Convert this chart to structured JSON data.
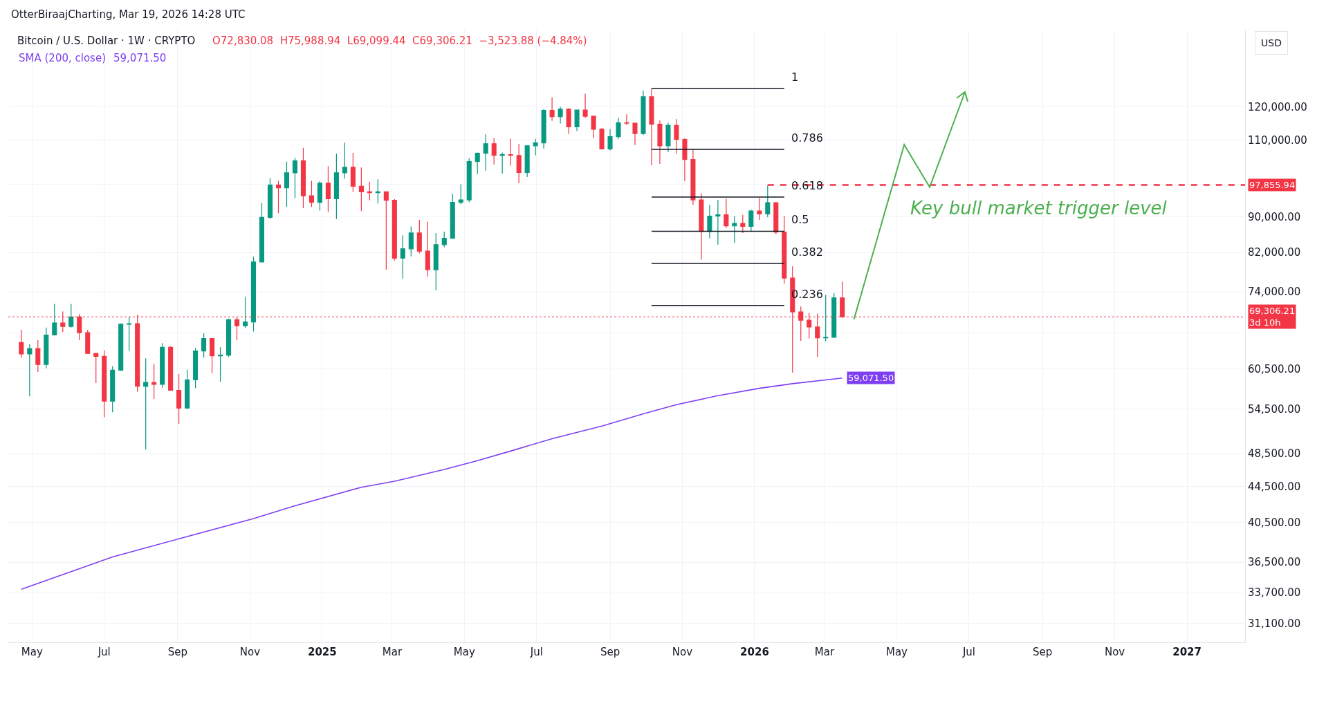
{
  "chart_data": {
    "type": "candlestick",
    "title": "Bitcoin / U.S. Dollar · 1W · CRYPTO",
    "annotations": [
      "OtterBiraajCharting, Mar 19, 2026 14:28 UTC",
      "O72,830.08  H75,988.94  L69,099.44  C69,306.21  −3,523.88 (−4.84%)",
      "USD",
      "Key bull market trigger level"
    ],
    "x": [
      "2024-04-22",
      "2024-04-29",
      "2024-05-06",
      "2024-05-13",
      "2024-05-20",
      "2024-05-27",
      "2024-06-03",
      "2024-06-10",
      "2024-06-17",
      "2024-06-24",
      "2024-07-01",
      "2024-07-08",
      "2024-07-15",
      "2024-07-22",
      "2024-07-29",
      "2024-08-05",
      "2024-08-12",
      "2024-08-19",
      "2024-08-26",
      "2024-09-02",
      "2024-09-09",
      "2024-09-16",
      "2024-09-23",
      "2024-09-30",
      "2024-10-07",
      "2024-10-14",
      "2024-10-21",
      "2024-10-28",
      "2024-11-04",
      "2024-11-11",
      "2024-11-18",
      "2024-11-25",
      "2024-12-02",
      "2024-12-09",
      "2024-12-16",
      "2024-12-23",
      "2024-12-30",
      "2025-01-06",
      "2025-01-13",
      "2025-01-20",
      "2025-01-27",
      "2025-02-03",
      "2025-02-10",
      "2025-02-17",
      "2025-02-24",
      "2025-03-03",
      "2025-03-10",
      "2025-03-17",
      "2025-03-24",
      "2025-03-31",
      "2025-04-07",
      "2025-04-14",
      "2025-04-21",
      "2025-04-28",
      "2025-05-05",
      "2025-05-12",
      "2025-05-19",
      "2025-05-26",
      "2025-06-02",
      "2025-06-09",
      "2025-06-16",
      "2025-06-23",
      "2025-06-30",
      "2025-07-07",
      "2025-07-14",
      "2025-07-21",
      "2025-07-28",
      "2025-08-04",
      "2025-08-11",
      "2025-08-18",
      "2025-08-25",
      "2025-09-01",
      "2025-09-08",
      "2025-09-15",
      "2025-09-22",
      "2025-09-29",
      "2025-10-06",
      "2025-10-13",
      "2025-10-20",
      "2025-10-27",
      "2025-11-03",
      "2025-11-10",
      "2025-11-17",
      "2025-11-24",
      "2025-12-01",
      "2025-12-08",
      "2025-12-15",
      "2025-12-22",
      "2025-12-29",
      "2026-01-05",
      "2026-01-12",
      "2026-01-19",
      "2026-01-26",
      "2026-02-02",
      "2026-02-09",
      "2026-02-16",
      "2026-02-23",
      "2026-03-02",
      "2026-03-09",
      "2026-03-16"
    ],
    "ohlc": [
      [
        64800,
        67000,
        62300,
        62900
      ],
      [
        62900,
        64500,
        56300,
        63800
      ],
      [
        63800,
        65200,
        60000,
        61200
      ],
      [
        61200,
        67400,
        60600,
        66100
      ],
      [
        66100,
        71700,
        66000,
        68200
      ],
      [
        68200,
        70300,
        66600,
        67600
      ],
      [
        67600,
        71700,
        67400,
        69300
      ],
      [
        69300,
        69800,
        65200,
        66500
      ],
      [
        66500,
        67000,
        62900,
        63000
      ],
      [
        63000,
        63000,
        58300,
        62500
      ],
      [
        62500,
        63500,
        53300,
        55600
      ],
      [
        55600,
        60900,
        54000,
        60300
      ],
      [
        60300,
        68100,
        60200,
        68000
      ],
      [
        68000,
        69200,
        63400,
        68100
      ],
      [
        68100,
        69700,
        57000,
        57800
      ],
      [
        57800,
        62200,
        49000,
        58400
      ],
      [
        58400,
        61300,
        55900,
        58100
      ],
      [
        58100,
        64700,
        57600,
        64000
      ],
      [
        64000,
        64200,
        57200,
        57200
      ],
      [
        57200,
        59700,
        52400,
        54600
      ],
      [
        54600,
        60400,
        54500,
        58800
      ],
      [
        58800,
        63900,
        57500,
        63400
      ],
      [
        63400,
        66400,
        62300,
        65500
      ],
      [
        65500,
        65500,
        59800,
        62600
      ],
      [
        62600,
        64000,
        58500,
        62700
      ],
      [
        62700,
        69000,
        62400,
        68800
      ],
      [
        68800,
        69300,
        65200,
        67700
      ],
      [
        67700,
        73000,
        67300,
        68400
      ],
      [
        68400,
        81100,
        66700,
        80000
      ],
      [
        80000,
        93300,
        80000,
        89900
      ],
      [
        89900,
        99600,
        89500,
        97800
      ],
      [
        97800,
        98900,
        90900,
        97100
      ],
      [
        97100,
        104000,
        92400,
        101000
      ],
      [
        101000,
        105100,
        94500,
        104200
      ],
      [
        104200,
        107800,
        92100,
        95100
      ],
      [
        95100,
        98900,
        92400,
        93500
      ],
      [
        93500,
        98800,
        91500,
        98300
      ],
      [
        98300,
        102800,
        91200,
        94400
      ],
      [
        94400,
        106200,
        89500,
        101000
      ],
      [
        101000,
        109300,
        99500,
        102500
      ],
      [
        102500,
        106400,
        96100,
        97500
      ],
      [
        97500,
        102400,
        91400,
        96100
      ],
      [
        96100,
        98700,
        94000,
        95900
      ],
      [
        95900,
        99300,
        93200,
        96100
      ],
      [
        96100,
        96200,
        78400,
        94000
      ],
      [
        94000,
        94300,
        80300,
        80800
      ],
      [
        80800,
        85800,
        76600,
        82800
      ],
      [
        82800,
        87800,
        81200,
        86300
      ],
      [
        86300,
        89300,
        81800,
        82300
      ],
      [
        82300,
        88900,
        77000,
        78400
      ],
      [
        78400,
        86300,
        74300,
        83700
      ],
      [
        83700,
        86600,
        83100,
        85100
      ],
      [
        85100,
        95600,
        85100,
        93500
      ],
      [
        93500,
        98000,
        93000,
        94100
      ],
      [
        94100,
        104900,
        93500,
        104000
      ],
      [
        104000,
        106500,
        100700,
        106300
      ],
      [
        106300,
        111700,
        101600,
        109000
      ],
      [
        109000,
        110600,
        103200,
        105700
      ],
      [
        105700,
        106500,
        100800,
        105900
      ],
      [
        105900,
        110400,
        102900,
        105700
      ],
      [
        105700,
        108900,
        98300,
        101100
      ],
      [
        101100,
        108500,
        99900,
        108400
      ],
      [
        108400,
        110400,
        105700,
        109200
      ],
      [
        109200,
        119300,
        107600,
        118900
      ],
      [
        118900,
        123000,
        115700,
        117000
      ],
      [
        117000,
        120000,
        114900,
        119300
      ],
      [
        119300,
        119600,
        111800,
        113900
      ],
      [
        113900,
        119000,
        112600,
        119000
      ],
      [
        119000,
        124200,
        116600,
        117100
      ],
      [
        117100,
        117300,
        110600,
        113200
      ],
      [
        113200,
        113500,
        107400,
        107500
      ],
      [
        107500,
        113200,
        107100,
        111000
      ],
      [
        111000,
        116600,
        110400,
        115100
      ],
      [
        115100,
        117700,
        114400,
        115000
      ],
      [
        115000,
        115100,
        108600,
        111900
      ],
      [
        111900,
        125200,
        111500,
        123200
      ],
      [
        123200,
        125900,
        103000,
        114700
      ],
      [
        114700,
        115800,
        103400,
        108400
      ],
      [
        108400,
        115100,
        106600,
        114300
      ],
      [
        114300,
        116200,
        106200,
        110200
      ],
      [
        110200,
        110600,
        98800,
        104600
      ],
      [
        104600,
        107400,
        92900,
        94100
      ],
      [
        94100,
        95700,
        80500,
        86600
      ],
      [
        86600,
        92900,
        85100,
        90200
      ],
      [
        90200,
        94100,
        83700,
        90500
      ],
      [
        90500,
        94400,
        87400,
        87900
      ],
      [
        87900,
        90200,
        84100,
        88500
      ],
      [
        88500,
        90500,
        86300,
        87800
      ],
      [
        87800,
        91700,
        86700,
        91400
      ],
      [
        91400,
        94600,
        89300,
        90700
      ],
      [
        90700,
        97700,
        89900,
        93400
      ],
      [
        93400,
        93400,
        86000,
        86500
      ],
      [
        86500,
        90200,
        75600,
        76700
      ],
      [
        76700,
        79100,
        59900,
        70200
      ],
      [
        70200,
        71200,
        65100,
        68700
      ],
      [
        68700,
        70000,
        65500,
        67500
      ],
      [
        67500,
        69900,
        62400,
        65600
      ],
      [
        65600,
        73400,
        65000,
        65700
      ],
      [
        65700,
        73700,
        65700,
        72830.08
      ],
      [
        72830.08,
        75988.94,
        69099.44,
        69306.21
      ]
    ],
    "series": [
      {
        "type": "line",
        "name": "SMA (200, close)",
        "color": "#7e3ff2",
        "x": [
          "2024-04-22",
          "2024-07-08",
          "2024-09-02",
          "2024-11-04",
          "2024-12-09",
          "2025-02-03",
          "2025-03-03",
          "2025-04-14",
          "2025-05-12",
          "2025-06-09",
          "2025-07-14",
          "2025-08-25",
          "2025-09-29",
          "2025-10-27",
          "2025-12-01",
          "2026-01-05",
          "2026-02-02",
          "2026-03-16"
        ],
        "values": [
          34000,
          37000,
          38800,
          40900,
          42300,
          44400,
          45100,
          46500,
          47600,
          48800,
          50400,
          52100,
          53800,
          55100,
          56400,
          57500,
          58200,
          59071.5
        ],
        "value_labels": [
          null,
          null,
          null,
          null,
          null,
          null,
          null,
          null,
          null,
          null,
          null,
          null,
          null,
          null,
          null,
          null,
          null,
          "59,071.50"
        ]
      },
      {
        "type": "line",
        "name": "1",
        "color": "#131722",
        "x": [
          "2025-10-06",
          "2026-01-26"
        ],
        "values": [
          125900,
          125900
        ]
      },
      {
        "type": "line",
        "name": "0.786",
        "color": "#131722",
        "x": [
          "2025-10-06",
          "2026-01-26"
        ],
        "values": [
          107400,
          107400
        ]
      },
      {
        "type": "line",
        "name": "0.618",
        "color": "#131722",
        "x": [
          "2025-10-06",
          "2026-01-26"
        ],
        "values": [
          94800,
          94800
        ]
      },
      {
        "type": "line",
        "name": "0.5",
        "color": "#131722",
        "x": [
          "2025-10-06",
          "2026-01-26"
        ],
        "values": [
          86700,
          86700
        ]
      },
      {
        "type": "line",
        "name": "0.382",
        "color": "#131722",
        "x": [
          "2025-10-06",
          "2026-01-26"
        ],
        "values": [
          79700,
          79700
        ]
      },
      {
        "type": "line",
        "name": "0.236",
        "color": "#131722",
        "x": [
          "2025-10-06",
          "2026-01-26"
        ],
        "values": [
          71400,
          71400
        ]
      }
    ],
    "log": "y",
    "grid": true,
    "xlim": [
      "2024-04-11",
      "2027-02-19"
    ],
    "xticks": [
      {
        "value": "2024-05-01",
        "label": "May"
      },
      {
        "value": "2024-07-01",
        "label": "Jul"
      },
      {
        "value": "2024-09-01",
        "label": "Sep"
      },
      {
        "value": "2024-11-01",
        "label": "Nov"
      },
      {
        "value": "2025-01-01",
        "label": "2025"
      },
      {
        "value": "2025-03-01",
        "label": "Mar"
      },
      {
        "value": "2025-05-01",
        "label": "May"
      },
      {
        "value": "2025-07-01",
        "label": "Jul"
      },
      {
        "value": "2025-09-01",
        "label": "Sep"
      },
      {
        "value": "2025-11-01",
        "label": "Nov"
      },
      {
        "value": "2026-01-01",
        "label": "2026"
      },
      {
        "value": "2026-03-01",
        "label": "Mar"
      },
      {
        "value": "2026-05-01",
        "label": "May"
      },
      {
        "value": "2026-07-01",
        "label": "Jul"
      },
      {
        "value": "2026-09-01",
        "label": "Sep"
      },
      {
        "value": "2026-11-01",
        "label": "Nov"
      },
      {
        "value": "2027-01-01",
        "label": "2027"
      }
    ],
    "ylim": [
      29600,
      146800
    ],
    "yticks": [
      {
        "value": 31100,
        "label": "31,100.00"
      },
      {
        "value": 33700,
        "label": "33,700.00"
      },
      {
        "value": 36500,
        "label": "36,500.00"
      },
      {
        "value": 40500,
        "label": "40,500.00"
      },
      {
        "value": 44500,
        "label": "44,500.00"
      },
      {
        "value": 48500,
        "label": "48,500.00"
      },
      {
        "value": 54500,
        "label": "54,500.00"
      },
      {
        "value": 60500,
        "label": "60,500.00"
      },
      {
        "value": 66500,
        "label": null
      },
      {
        "value": 74000,
        "label": "74,000.00"
      },
      {
        "value": 82000,
        "label": "82,000.00"
      },
      {
        "value": 90000,
        "label": "90,000.00"
      },
      {
        "value": 98000,
        "label": null
      },
      {
        "value": 110000,
        "label": "110,000.00"
      },
      {
        "value": 120000,
        "label": "120,000.00"
      }
    ],
    "ref_lines": [
      {
        "axis": "y",
        "value": 97855.94,
        "label": "97,855.94",
        "color": "#f23645",
        "line_style": "dashed"
      },
      {
        "axis": "y",
        "value": 69306.21,
        "label": "69,306.21\n3d 10h",
        "color": "#f23645",
        "line_style": "dotted"
      }
    ]
  }
}
